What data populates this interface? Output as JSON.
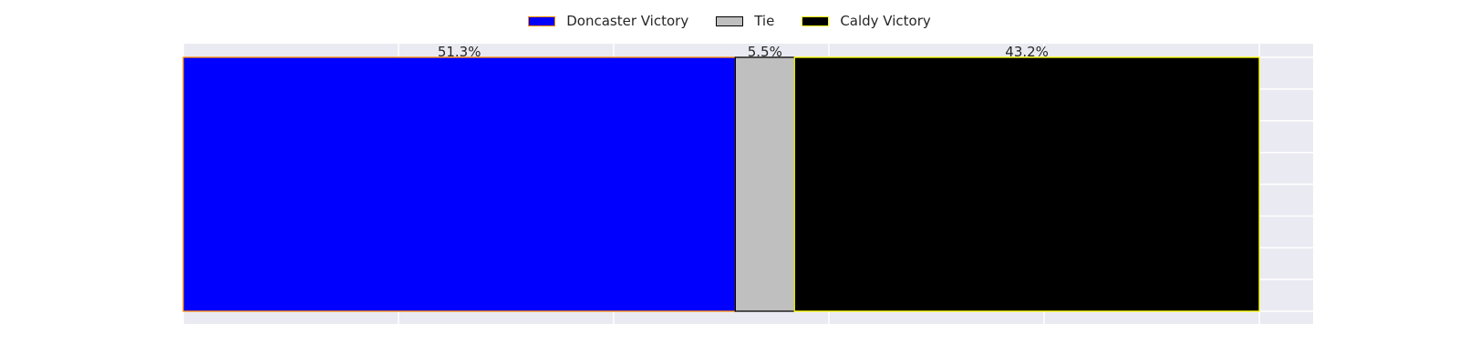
{
  "chart_data": {
    "type": "bar",
    "orientation": "horizontal-stacked",
    "title": "",
    "xlabel": "",
    "ylabel": "",
    "xlim": [
      0,
      105
    ],
    "grid": true,
    "legend_position": "top-center",
    "series": [
      {
        "name": "Doncaster Victory",
        "value": 51.3,
        "label": "51.3%",
        "fill": "#0000ff",
        "edge": "#ff8c00"
      },
      {
        "name": "Tie",
        "value": 5.5,
        "label": "5.5%",
        "fill": "#bfbfbf",
        "edge": "#000000"
      },
      {
        "name": "Caldy Victory",
        "value": 43.2,
        "label": "43.2%",
        "fill": "#000000",
        "edge": "#ffff00"
      }
    ]
  }
}
